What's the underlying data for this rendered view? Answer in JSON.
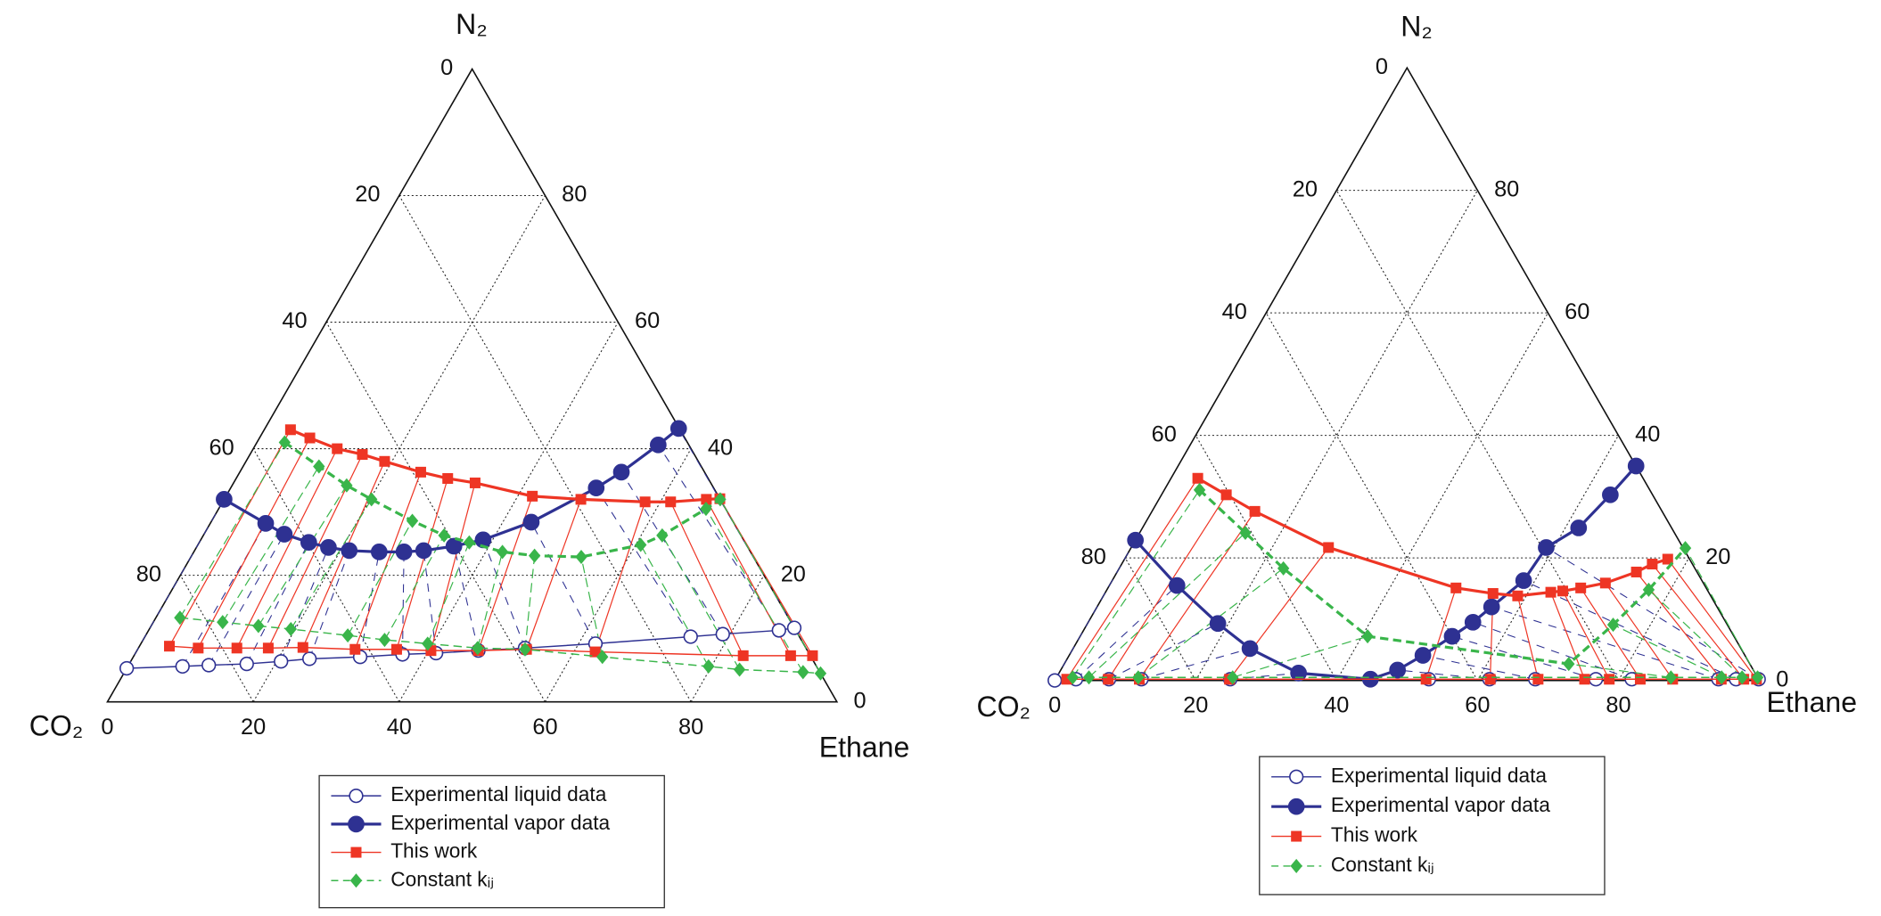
{
  "chart_data": [
    {
      "type": "ternary",
      "apex_label": "N₂",
      "left_label": "CO₂",
      "right_label": "Ethane",
      "ticks": [
        0,
        20,
        40,
        60,
        80
      ],
      "grid": true,
      "series": [
        {
          "name": "Experimental liquid data",
          "color": "#2e3192",
          "marker": "open-circle",
          "liquid": {
            "n2": [
              5.3,
              5.6,
              5.8,
              6.0,
              6.4,
              6.8,
              7.1,
              7.5,
              7.7,
              8.1,
              8.5,
              9.2,
              10.3,
              10.7,
              11.3,
              11.7
            ],
            "ethane": [
              0,
              7.5,
              11,
              16.1,
              20.6,
              24.3,
              31.1,
              36.7,
              41.2,
              46.8,
              53.0,
              62.3,
              74.8,
              79,
              86.4,
              88.3
            ]
          }
        },
        {
          "name": "Experimental vapor data",
          "color": "#2e3192",
          "marker": "circle",
          "vapor": {
            "n2": [
              32.0,
              28.2,
              26.5,
              25.2,
              24.4,
              23.9,
              23.7,
              23.7,
              23.9,
              24.6,
              25.6,
              28.4,
              33.8,
              36.3,
              40.6,
              43.2
            ],
            "ethane": [
              0,
              7.6,
              11.0,
              15.0,
              18.1,
              21.2,
              25.4,
              28.8,
              31.4,
              35.2,
              38.7,
              43.9,
              50.1,
              52.3,
              55.2,
              56.7
            ]
          }
        },
        {
          "name": "This work",
          "color": "#ee3524",
          "marker": "square",
          "liquid": {
            "n2": [
              8.8,
              8.5,
              8.5,
              8.5,
              8.6,
              8.3,
              8.3,
              8.1,
              8.1,
              8.3,
              7.9,
              7.3,
              7.3,
              7.3
            ],
            "ethane": [
              4.1,
              8.2,
              13.5,
              17.8,
              22.5,
              29.8,
              35.5,
              40.3,
              46.8,
              53.3,
              62.9,
              83.5,
              90.0,
              93.0
            ]
          },
          "vapor": {
            "n2": [
              43.0,
              41.7,
              40.0,
              39.1,
              38.0,
              36.3,
              35.3,
              34.6,
              32.5,
              32.0,
              31.6,
              31.6,
              32.0,
              32.1
            ],
            "ethane": [
              3.6,
              6.9,
              11.5,
              15.4,
              19.0,
              24.8,
              29.0,
              33.1,
              42.0,
              48.9,
              57.9,
              61.4,
              66.1,
              67.9
            ]
          }
        },
        {
          "name": "Constant kᵢⱼ",
          "color": "#39b54a",
          "marker": "diamond",
          "dashed": true,
          "liquid": {
            "n2": [
              13.3,
              12.6,
              12.0,
              11.5,
              10.5,
              9.8,
              9.2,
              8.5,
              8.3,
              7.1,
              5.6,
              5.1,
              4.7,
              4.5
            ],
            "ethane": [
              3.3,
              9.5,
              14.7,
              19.4,
              27.7,
              33.1,
              39.3,
              46.5,
              53.1,
              64.3,
              79.6,
              84.1,
              93.0,
              95.5
            ]
          },
          "vapor": {
            "n2": [
              41.0,
              37.2,
              34.2,
              32.0,
              28.6,
              26.3,
              25.2,
              23.7,
              23.1,
              22.9,
              24.8,
              26.3,
              30.5,
              32.0
            ],
            "ethane": [
              3.8,
              10.4,
              15.7,
              20.2,
              27.5,
              33.0,
              37.0,
              42.3,
              47.0,
              53.5,
              60.7,
              62.9,
              66.8,
              68.0
            ]
          }
        }
      ]
    },
    {
      "type": "ternary",
      "apex_label": "N₂",
      "left_label": "CO₂",
      "right_label": "Ethane",
      "ticks": [
        0,
        20,
        40,
        60,
        80
      ],
      "grid": true,
      "series": [
        {
          "name": "Experimental liquid data",
          "color": "#2e3192",
          "marker": "open-circle",
          "liquid": {
            "n2": [
              0,
              0.2,
              0.2,
              0.2,
              0.2,
              0.2,
              0.2,
              0.2,
              0.2,
              0.2,
              0.2,
              0.2,
              0.2
            ],
            "ethane": [
              0,
              2.9,
              7.6,
              12.2,
              24.8,
              53.0,
              61.6,
              68.1,
              76.7,
              81.8,
              94.1,
              96.6,
              99.8
            ]
          }
        },
        {
          "name": "Experimental vapor data",
          "color": "#2e3192",
          "marker": "circle",
          "vapor": {
            "n2": [
              22.9,
              15.5,
              9.3,
              5.2,
              1.2,
              0.2,
              1.7,
              4.1,
              7.2,
              9.5,
              12.0,
              16.3,
              21.7,
              24.9,
              30.3,
              35.0
            ],
            "ethane": [
              0,
              9.6,
              18.5,
              25.1,
              34.0,
              44.7,
              47.8,
              50.2,
              52.8,
              54.6,
              56.0,
              58.4,
              58.9,
              61.9,
              63.7,
              65.0
            ]
          }
        },
        {
          "name": "This work",
          "color": "#ee3524",
          "marker": "square",
          "liquid": {
            "n2": [
              0.2,
              0.2,
              0.2,
              0.2,
              0.2,
              0.2,
              0.2,
              0.2,
              0.2,
              0.2,
              0.2,
              0.2,
              0.2,
              0.2
            ],
            "ethane": [
              1.6,
              7.5,
              11.9,
              24.7,
              52.6,
              61.7,
              68.5,
              75.1,
              78.6,
              83.0,
              87.6,
              94.5,
              97.7,
              99.5
            ]
          },
          "vapor": {
            "n2": [
              33.0,
              30.3,
              27.6,
              21.7,
              15.1,
              14.2,
              13.8,
              14.4,
              14.6,
              15.1,
              15.9,
              17.7,
              19.0,
              19.8
            ],
            "ethane": [
              3.8,
              9.2,
              14.6,
              28.0,
              49.4,
              55.1,
              58.8,
              63.2,
              64.8,
              67.1,
              70.2,
              73.7,
              75.3,
              77.1
            ]
          }
        },
        {
          "name": "Constant kᵢⱼ",
          "color": "#39b54a",
          "marker": "diamond",
          "dashed": true,
          "liquid": {
            "n2": [
              0.5,
              0.5,
              0.5,
              0.5,
              0.5,
              0.5,
              0.5,
              0.5
            ],
            "ethane": [
              2.3,
              4.6,
              11.6,
              25.0,
              87.2,
              94.4,
              97.3,
              99.5
            ]
          },
          "vapor": {
            "n2": [
              31.1,
              24.1,
              18.3,
              7.2,
              2.7,
              9.1,
              14.8,
              21.6
            ],
            "ethane": [
              5.0,
              15.0,
              23.3,
              40.8,
              71.6,
              74.7,
              76.9,
              78.7
            ]
          }
        }
      ]
    }
  ]
}
